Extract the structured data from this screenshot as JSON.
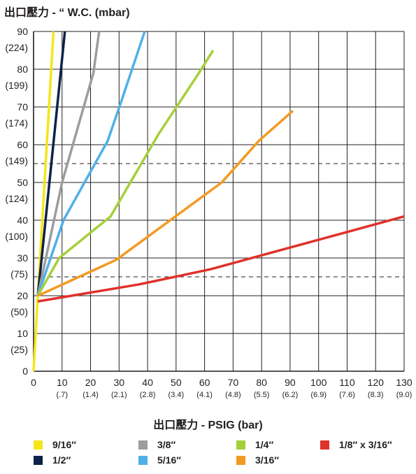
{
  "chart_data": {
    "type": "line",
    "ylabel": "出口壓力 - “ W.C. (mbar)",
    "xlabel": "出口壓力 - PSIG (bar)",
    "xlim": [
      0,
      130
    ],
    "ylim": [
      0,
      90
    ],
    "grid": true,
    "legend_position": "bottom",
    "x_ticks": [
      {
        "value": 0,
        "label": "0",
        "sub": ""
      },
      {
        "value": 10,
        "label": "10",
        "sub": "(.7)"
      },
      {
        "value": 20,
        "label": "20",
        "sub": "(1.4)"
      },
      {
        "value": 30,
        "label": "30",
        "sub": "(2.1)"
      },
      {
        "value": 40,
        "label": "40",
        "sub": "(2.8)"
      },
      {
        "value": 50,
        "label": "50",
        "sub": "(3.4)"
      },
      {
        "value": 60,
        "label": "60",
        "sub": "(4.1)"
      },
      {
        "value": 70,
        "label": "70",
        "sub": "(4.8)"
      },
      {
        "value": 80,
        "label": "80",
        "sub": "(5.5)"
      },
      {
        "value": 90,
        "label": "90",
        "sub": "(6.2)"
      },
      {
        "value": 100,
        "label": "100",
        "sub": "(6.9)"
      },
      {
        "value": 110,
        "label": "110",
        "sub": "(7.6)"
      },
      {
        "value": 120,
        "label": "120",
        "sub": "(8.3)"
      },
      {
        "value": 130,
        "label": "130",
        "sub": "(9.0)"
      }
    ],
    "y_ticks": [
      {
        "value": 0,
        "label": "0",
        "sub": ""
      },
      {
        "value": 10,
        "label": "10",
        "sub": "(25)"
      },
      {
        "value": 20,
        "label": "20",
        "sub": "(50)"
      },
      {
        "value": 30,
        "label": "30",
        "sub": "(75)"
      },
      {
        "value": 40,
        "label": "40",
        "sub": "(100)"
      },
      {
        "value": 50,
        "label": "50",
        "sub": "(124)"
      },
      {
        "value": 60,
        "label": "60",
        "sub": "(149)"
      },
      {
        "value": 70,
        "label": "70",
        "sub": "(174)"
      },
      {
        "value": 80,
        "label": "80",
        "sub": "(199)"
      },
      {
        "value": 90,
        "label": "90",
        "sub": "(224)"
      }
    ],
    "dashed_gridlines_y": [
      30,
      60
    ],
    "series": [
      {
        "name": "9/16″",
        "color": "#f5e61a",
        "x": [
          0,
          1.5,
          7
        ],
        "y": [
          0,
          20,
          90
        ]
      },
      {
        "name": "1/2″",
        "color": "#0d2249",
        "x": [
          1.5,
          11
        ],
        "y": [
          20,
          90
        ]
      },
      {
        "name": "3/8″",
        "color": "#9d9d9d",
        "x": [
          1.5,
          10,
          21,
          23
        ],
        "y": [
          20,
          50,
          79,
          90
        ]
      },
      {
        "name": "5/16″",
        "color": "#4fb0e8",
        "x": [
          1.5,
          10.5,
          26,
          31,
          39
        ],
        "y": [
          20,
          40,
          61,
          72,
          90
        ]
      },
      {
        "name": "1/4″",
        "color": "#a6cf39",
        "x": [
          1.5,
          9,
          27,
          44,
          58,
          63
        ],
        "y": [
          20,
          30,
          41,
          63,
          79,
          85
        ]
      },
      {
        "name": "3/16″",
        "color": "#f29a22",
        "x": [
          1.5,
          29,
          66,
          79,
          91
        ],
        "y": [
          20,
          29.5,
          50,
          61,
          69
        ]
      },
      {
        "name": "1/8″ x 3/16″",
        "color": "#e0312a",
        "x": [
          1.5,
          37,
          62,
          130
        ],
        "y": [
          18.5,
          23,
          27,
          41
        ]
      }
    ],
    "legend": [
      {
        "label": "9/16″",
        "color": "#f5e61a"
      },
      {
        "label": "1/2″",
        "color": "#0d2249"
      },
      {
        "label": "3/8″",
        "color": "#9d9d9d"
      },
      {
        "label": "5/16″",
        "color": "#4fb0e8"
      },
      {
        "label": "1/4″",
        "color": "#a6cf39"
      },
      {
        "label": "3/16″",
        "color": "#f29a22"
      },
      {
        "label": "1/8″ x 3/16″",
        "color": "#e0312a"
      }
    ]
  }
}
